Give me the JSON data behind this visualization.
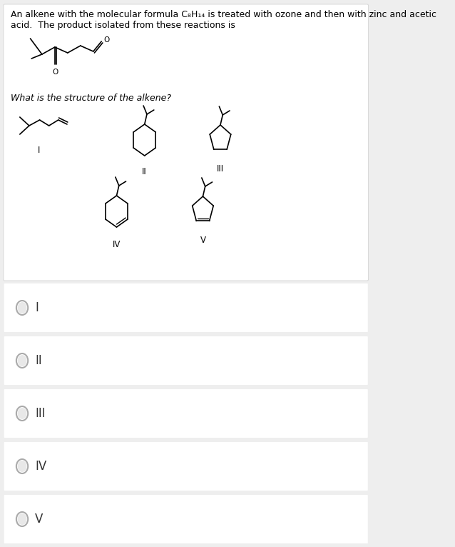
{
  "title_text": "An alkene with the molecular formula C₈H₁₄ is treated with ozone and then with zinc and acetic\nacid.  The product isolated from these reactions is",
  "question_text": "What is the structure of the alkene?",
  "bg_color_top": "#ffffff",
  "bg_color_bottom": "#eeeeee",
  "text_color": "#000000",
  "radio_color": "#aaaaaa",
  "font_size_title": 9.0,
  "font_size_labels": 9,
  "option_labels": [
    "I",
    "II",
    "III",
    "IV",
    "V"
  ]
}
